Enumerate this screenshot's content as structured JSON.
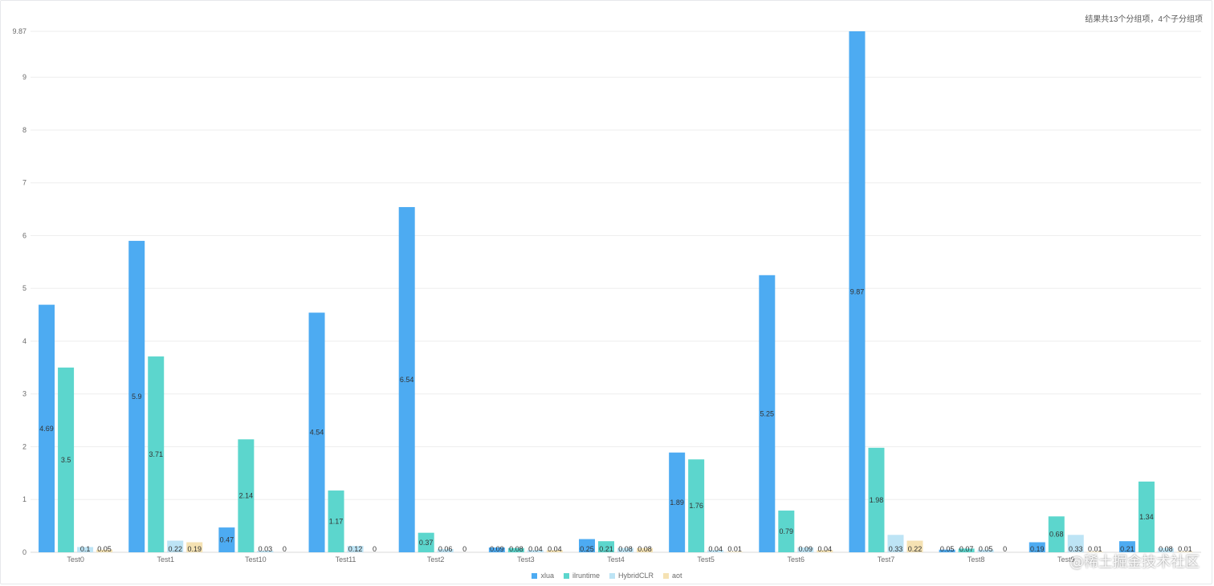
{
  "summary_text": "结果共13个分组项，4个子分组项",
  "watermark": "@稀土掘金技术社区",
  "chart_data": {
    "type": "bar",
    "categories": [
      "Test0",
      "Test1",
      "Test10",
      "Test11",
      "Test2",
      "Test3",
      "Test4",
      "Test5",
      "Test6",
      "Test7",
      "Test8",
      "Test9",
      ""
    ],
    "series": [
      {
        "name": "xlua",
        "color": "#4dabf2",
        "values": [
          4.69,
          5.9,
          0.47,
          4.54,
          6.54,
          0.09,
          0.25,
          1.89,
          5.25,
          9.87,
          0.05,
          0.19,
          0.21
        ]
      },
      {
        "name": "ilruntime",
        "color": "#5cd6cd",
        "values": [
          3.5,
          3.71,
          2.14,
          1.17,
          0.37,
          0.08,
          0.21,
          1.76,
          0.79,
          1.98,
          0.07,
          0.68,
          1.34
        ]
      },
      {
        "name": "HybridCLR",
        "color": "#bde4f5",
        "values": [
          0.1,
          0.22,
          0.03,
          0.12,
          0.06,
          0.04,
          0.08,
          0.04,
          0.09,
          0.33,
          0.05,
          0.33,
          0.08
        ]
      },
      {
        "name": "aot",
        "color": "#f5e2b3",
        "values": [
          0.05,
          0.19,
          0,
          0,
          0,
          0.04,
          0.08,
          0.01,
          0.04,
          0.22,
          0,
          0.01,
          0.01
        ]
      }
    ],
    "y_ticks": [
      "0",
      "1",
      "2",
      "3",
      "4",
      "5",
      "6",
      "7",
      "8",
      "9",
      "9.87"
    ],
    "y_tick_values": [
      0,
      1,
      2,
      3,
      4,
      5,
      6,
      7,
      8,
      9,
      9.87
    ],
    "ylim": [
      0,
      9.87
    ],
    "grid": true,
    "legend_position": "bottom-center",
    "data_labels": true
  }
}
